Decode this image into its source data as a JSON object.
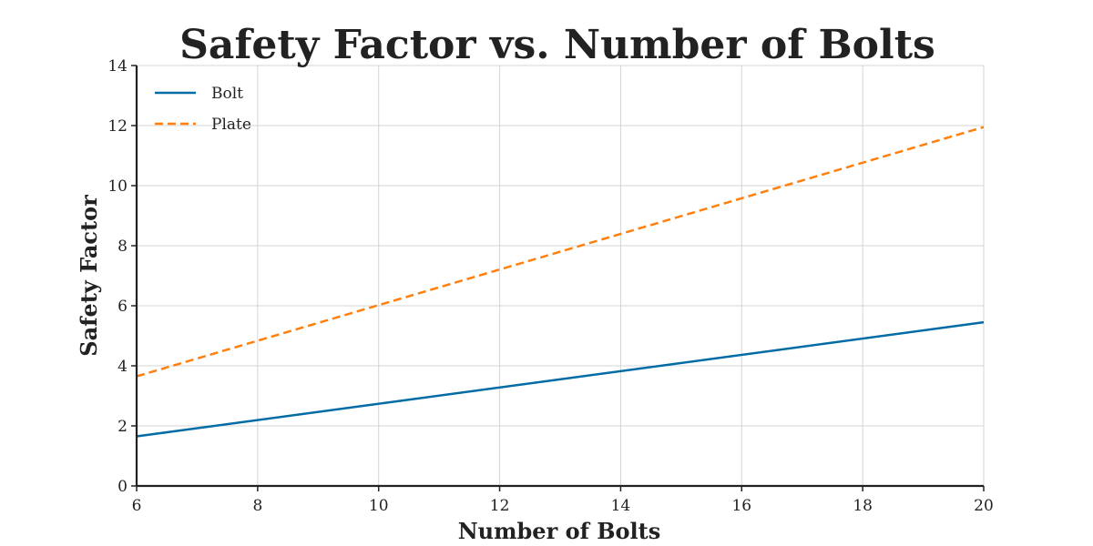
{
  "chart_data": {
    "type": "line",
    "title": "Safety Factor vs. Number of Bolts",
    "xlabel": "Number of Bolts",
    "ylabel": "Safety Factor",
    "xlim": [
      6,
      20
    ],
    "ylim": [
      0,
      14
    ],
    "xticks": [
      6,
      8,
      10,
      12,
      14,
      16,
      18,
      20
    ],
    "yticks": [
      0,
      2,
      4,
      6,
      8,
      10,
      12,
      14
    ],
    "grid": true,
    "legend_position": "top-left",
    "series": [
      {
        "name": "Bolt",
        "color": "#006BA4",
        "style": "solid",
        "x": [
          6,
          20
        ],
        "y": [
          1.65,
          5.45
        ]
      },
      {
        "name": "Plate",
        "color": "#FF800E",
        "style": "dashed",
        "x": [
          6,
          20
        ],
        "y": [
          3.65,
          11.95
        ]
      }
    ]
  }
}
